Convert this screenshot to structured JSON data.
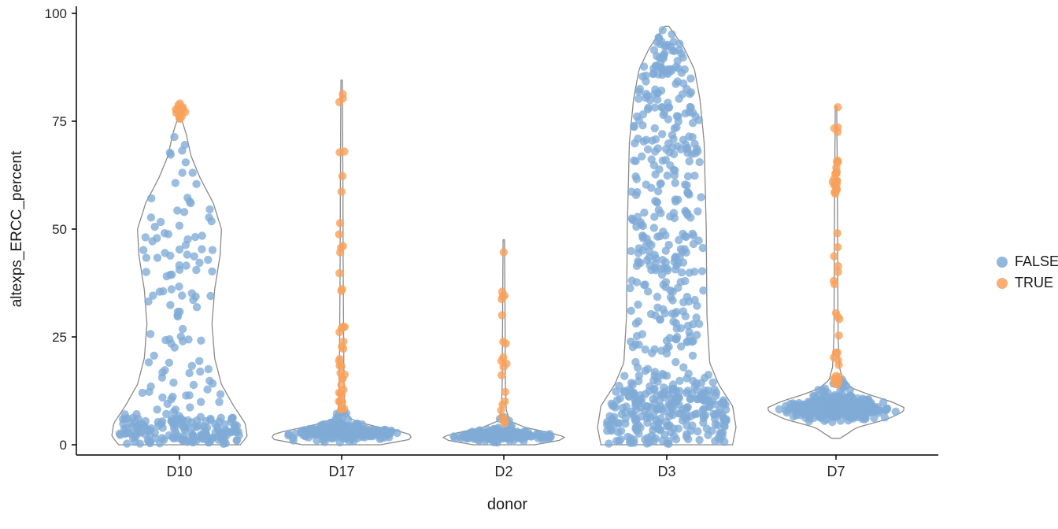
{
  "chart_data": {
    "type": "scatter",
    "subtype": "violin_with_jittered_points",
    "title": "",
    "xlabel": "donor",
    "ylabel": "altexps_ERCC_percent",
    "x_categories": [
      "D10",
      "D17",
      "D2",
      "D3",
      "D7"
    ],
    "ylim": [
      0,
      100
    ],
    "yticks": [
      0,
      25,
      50,
      75,
      100
    ],
    "grid": false,
    "panel_background": "#ffffff",
    "axis_color": "#000000",
    "violin_outline_color": "#8a8a8a",
    "legend": {
      "position": "right",
      "title": "",
      "entries": [
        {
          "label": "FALSE",
          "color": "#7fabd6"
        },
        {
          "label": "TRUE",
          "color": "#f8a05a"
        }
      ]
    },
    "violins": [
      {
        "donor": "D10",
        "value_range": [
          0,
          76
        ],
        "max_halfwidth": 86,
        "profile": [
          [
            0,
            0.9
          ],
          [
            2,
            1.0
          ],
          [
            5,
            0.97
          ],
          [
            9,
            0.8
          ],
          [
            14,
            0.62
          ],
          [
            20,
            0.52
          ],
          [
            28,
            0.48
          ],
          [
            36,
            0.52
          ],
          [
            44,
            0.6
          ],
          [
            50,
            0.62
          ],
          [
            56,
            0.5
          ],
          [
            62,
            0.3
          ],
          [
            67,
            0.17
          ],
          [
            72,
            0.1
          ],
          [
            75.5,
            0.03
          ]
        ],
        "clusters": [
          {
            "flag": "FALSE",
            "n": 140,
            "ymin": 0.2,
            "ymax": 6,
            "bias": "uniform"
          },
          {
            "flag": "FALSE",
            "n": 90,
            "ymin": 6,
            "ymax": 62,
            "bias": "bottom"
          },
          {
            "flag": "FALSE",
            "n": 28,
            "ymin": 38,
            "ymax": 56,
            "bias": "uniform"
          },
          {
            "flag": "FALSE",
            "n": 10,
            "ymin": 60,
            "ymax": 72,
            "bias": "uniform"
          },
          {
            "flag": "TRUE",
            "n": 14,
            "ymin": 74,
            "ymax": 81.5,
            "bias": "normal",
            "jx": 8
          }
        ]
      },
      {
        "donor": "D17",
        "value_range": [
          0,
          84.5
        ],
        "max_halfwidth": 90,
        "profile": [
          [
            0,
            0.55
          ],
          [
            1.2,
            0.95
          ],
          [
            2.2,
            1.0
          ],
          [
            3.2,
            0.8
          ],
          [
            4.5,
            0.4
          ],
          [
            6,
            0.12
          ],
          [
            8,
            0.05
          ],
          [
            12,
            0.035
          ],
          [
            20,
            0.03
          ],
          [
            40,
            0.022
          ],
          [
            60,
            0.018
          ],
          [
            84.5,
            0.01
          ]
        ],
        "clusters": [
          {
            "flag": "FALSE",
            "n": 290,
            "ymin": 0.3,
            "ymax": 5.5,
            "bias": "normal"
          },
          {
            "flag": "FALSE",
            "n": 14,
            "ymin": 4.5,
            "ymax": 8,
            "bias": "bottom"
          },
          {
            "flag": "TRUE",
            "n": 26,
            "ymin": 8,
            "ymax": 30,
            "bias": "bottom",
            "jx": 4
          },
          {
            "flag": "TRUE",
            "n": 12,
            "ymin": 30,
            "ymax": 70,
            "bias": "uniform",
            "jx": 3.5
          },
          {
            "flag": "TRUE",
            "n": 3,
            "ymin": 70,
            "ymax": 84.5,
            "bias": "top",
            "jx": 3
          }
        ]
      },
      {
        "donor": "D2",
        "value_range": [
          0,
          47.5
        ],
        "max_halfwidth": 78,
        "profile": [
          [
            0,
            0.5
          ],
          [
            1,
            0.9
          ],
          [
            1.8,
            1.0
          ],
          [
            2.8,
            0.75
          ],
          [
            4,
            0.35
          ],
          [
            5.5,
            0.1
          ],
          [
            8,
            0.04
          ],
          [
            15,
            0.025
          ],
          [
            30,
            0.02
          ],
          [
            47.5,
            0.012
          ]
        ],
        "clusters": [
          {
            "flag": "FALSE",
            "n": 210,
            "ymin": 0.3,
            "ymax": 4.2,
            "bias": "normal"
          },
          {
            "flag": "FALSE",
            "n": 8,
            "ymin": 4,
            "ymax": 6.5,
            "bias": "uniform"
          },
          {
            "flag": "TRUE",
            "n": 12,
            "ymin": 5,
            "ymax": 20,
            "bias": "bottom",
            "jx": 3.5
          },
          {
            "flag": "TRUE",
            "n": 9,
            "ymin": 20,
            "ymax": 47.5,
            "bias": "uniform",
            "jx": 3.2
          }
        ]
      },
      {
        "donor": "D3",
        "value_range": [
          0,
          97
        ],
        "max_halfwidth": 88,
        "profile": [
          [
            0,
            0.95
          ],
          [
            4,
            1.0
          ],
          [
            9,
            0.95
          ],
          [
            14,
            0.75
          ],
          [
            19,
            0.62
          ],
          [
            30,
            0.58
          ],
          [
            50,
            0.57
          ],
          [
            70,
            0.54
          ],
          [
            80,
            0.48
          ],
          [
            87,
            0.4
          ],
          [
            92,
            0.25
          ],
          [
            95,
            0.12
          ],
          [
            97,
            0.03
          ]
        ],
        "clusters": [
          {
            "flag": "FALSE",
            "n": 240,
            "ymin": 0.2,
            "ymax": 13,
            "bias": "uniform"
          },
          {
            "flag": "FALSE",
            "n": 330,
            "ymin": 13,
            "ymax": 87,
            "bias": "uniform"
          },
          {
            "flag": "FALSE",
            "n": 40,
            "ymin": 87,
            "ymax": 96.5,
            "bias": "bottom"
          }
        ]
      },
      {
        "donor": "D7",
        "value_range": [
          1.5,
          78.5
        ],
        "max_halfwidth": 88,
        "profile": [
          [
            1.5,
            0.06
          ],
          [
            4,
            0.3
          ],
          [
            6,
            0.75
          ],
          [
            7.5,
            0.95
          ],
          [
            8.5,
            1.0
          ],
          [
            10,
            0.8
          ],
          [
            11.5,
            0.5
          ],
          [
            13,
            0.25
          ],
          [
            15,
            0.1
          ],
          [
            18,
            0.05
          ],
          [
            25,
            0.03
          ],
          [
            40,
            0.025
          ],
          [
            60,
            0.02
          ],
          [
            78.5,
            0.01
          ]
        ],
        "clusters": [
          {
            "flag": "FALSE",
            "n": 320,
            "ymin": 4.5,
            "ymax": 12.5,
            "bias": "normal"
          },
          {
            "flag": "FALSE",
            "n": 12,
            "ymin": 12.5,
            "ymax": 15.5,
            "bias": "bottom"
          },
          {
            "flag": "TRUE",
            "n": 16,
            "ymin": 14,
            "ymax": 30,
            "bias": "bottom",
            "jx": 4.5
          },
          {
            "flag": "TRUE",
            "n": 8,
            "ymin": 30,
            "ymax": 55,
            "bias": "uniform",
            "jx": 3.5
          },
          {
            "flag": "TRUE",
            "n": 20,
            "ymin": 55,
            "ymax": 72,
            "bias": "normal",
            "jx": 6
          },
          {
            "flag": "TRUE",
            "n": 4,
            "ymin": 72,
            "ymax": 79,
            "bias": "uniform",
            "jx": 3
          }
        ]
      }
    ]
  }
}
